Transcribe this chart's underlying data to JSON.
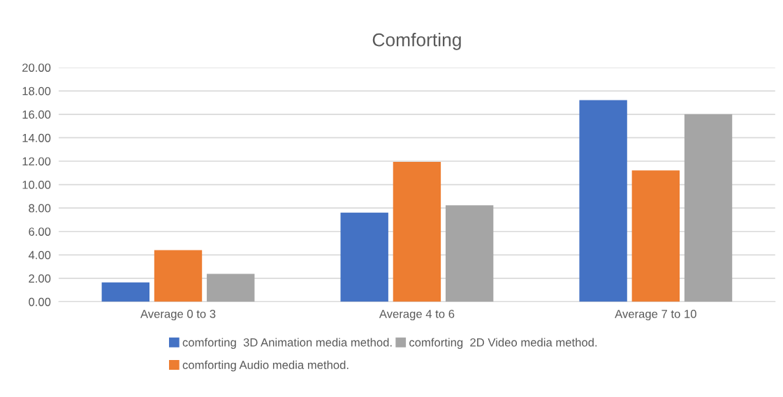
{
  "chart_data": {
    "type": "bar",
    "title": "Comforting",
    "categories": [
      "Average 0 to 3",
      "Average 4 to 6",
      "Average 7 to 10"
    ],
    "series": [
      {
        "name": "comforting  3D Animation media method.",
        "color": "#4472c4",
        "values": [
          1.65,
          7.6,
          17.22
        ]
      },
      {
        "name": "comforting Audio media method.",
        "color": "#ed7d31",
        "values": [
          4.4,
          11.94,
          11.21
        ]
      },
      {
        "name": "comforting  2D Video media method.",
        "color": "#a5a5a5",
        "values": [
          2.38,
          8.23,
          16.0
        ]
      }
    ],
    "ylim": [
      0,
      20
    ],
    "yticks": [
      {
        "value": 0,
        "label": "0.00"
      },
      {
        "value": 2,
        "label": "2.00"
      },
      {
        "value": 4,
        "label": "4.00"
      },
      {
        "value": 6,
        "label": "6.00"
      },
      {
        "value": 8,
        "label": "8.00"
      },
      {
        "value": 10,
        "label": "10.00"
      },
      {
        "value": 12,
        "label": "12.00"
      },
      {
        "value": 14,
        "label": "14.00"
      },
      {
        "value": 16,
        "label": "16.00"
      },
      {
        "value": 18,
        "label": "18.00"
      },
      {
        "value": 20,
        "label": "20.00"
      }
    ],
    "grid": "y",
    "legend": "bottom"
  }
}
